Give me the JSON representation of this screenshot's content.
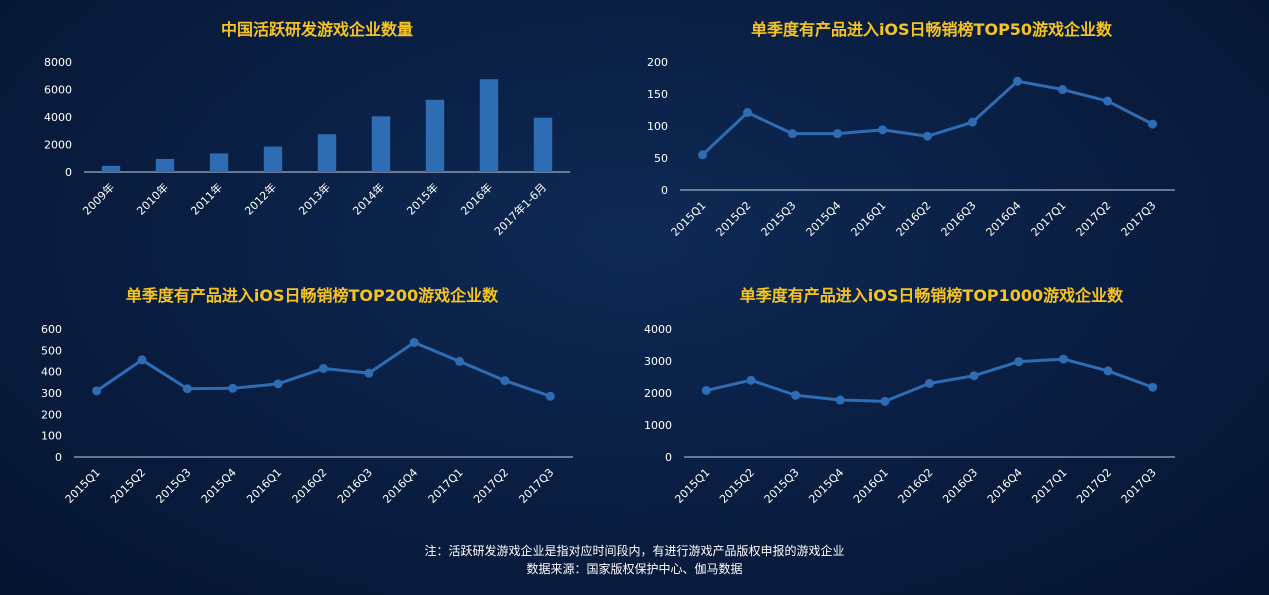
{
  "colors": {
    "title": "#f6c324",
    "series": "#2e6db4",
    "axis": "#c8d2e0"
  },
  "chart_data": [
    {
      "type": "bar",
      "title": "中国活跃研发游戏企业数量",
      "categories": [
        "2009年",
        "2010年",
        "2011年",
        "2012年",
        "2013年",
        "2014年",
        "2015年",
        "2016年",
        "2017年1-6月"
      ],
      "values": [
        450,
        950,
        1350,
        1850,
        2750,
        4050,
        5250,
        6750,
        3950
      ],
      "ylim": [
        0,
        8000
      ],
      "yticks": [
        0,
        2000,
        4000,
        6000,
        8000
      ],
      "grid": false
    },
    {
      "type": "line",
      "title": "单季度有产品进入iOS日畅销榜TOP50游戏企业数",
      "categories": [
        "2015Q1",
        "2015Q2",
        "2015Q3",
        "2015Q4",
        "2016Q1",
        "2016Q2",
        "2016Q3",
        "2016Q4",
        "2017Q1",
        "2017Q2",
        "2017Q3"
      ],
      "values": [
        55,
        121,
        88,
        88,
        94,
        84,
        106,
        170,
        157,
        139,
        103
      ],
      "ylim": [
        0,
        200
      ],
      "yticks": [
        0,
        50,
        100,
        150,
        200
      ],
      "grid": false
    },
    {
      "type": "line",
      "title": "单季度有产品进入iOS日畅销榜TOP200游戏企业数",
      "categories": [
        "2015Q1",
        "2015Q2",
        "2015Q3",
        "2015Q4",
        "2016Q1",
        "2016Q2",
        "2016Q3",
        "2016Q4",
        "2017Q1",
        "2017Q2",
        "2017Q3"
      ],
      "values": [
        310,
        455,
        320,
        322,
        343,
        415,
        393,
        537,
        448,
        358,
        285
      ],
      "ylim": [
        0,
        600
      ],
      "yticks": [
        0,
        100,
        200,
        300,
        400,
        500,
        600
      ],
      "grid": false
    },
    {
      "type": "line",
      "title": "单季度有产品进入iOS日畅销榜TOP1000游戏企业数",
      "categories": [
        "2015Q1",
        "2015Q2",
        "2015Q3",
        "2015Q4",
        "2016Q1",
        "2016Q2",
        "2016Q3",
        "2016Q4",
        "2017Q1",
        "2017Q2",
        "2017Q3"
      ],
      "values": [
        2080,
        2400,
        1930,
        1780,
        1740,
        2300,
        2540,
        2980,
        3060,
        2690,
        2180
      ],
      "ylim": [
        0,
        4000
      ],
      "yticks": [
        0,
        1000,
        2000,
        3000,
        4000
      ],
      "grid": false
    }
  ],
  "footnote": {
    "line1": "注：活跃研发游戏企业是指对应时间段内，有进行游戏产品版权申报的游戏企业",
    "line2": "数据来源：国家版权保护中心、伽马数据"
  }
}
